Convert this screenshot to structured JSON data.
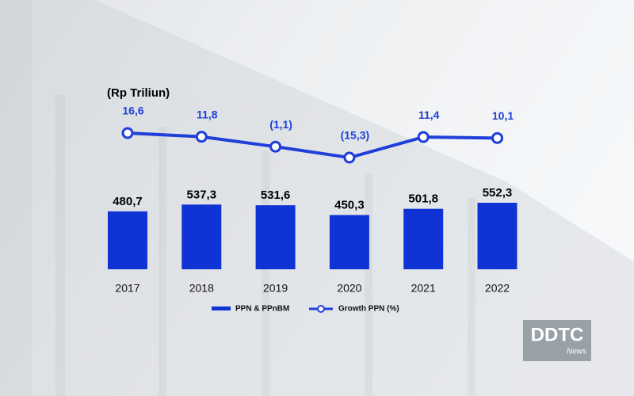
{
  "chart_data": {
    "type": "combo",
    "unit_label": "(Rp Triliun)",
    "categories": [
      "2017",
      "2018",
      "2019",
      "2020",
      "2021",
      "2022"
    ],
    "series": [
      {
        "name": "PPN & PPnBM",
        "type": "bar",
        "color": "#0f33d4",
        "values": [
          480.7,
          537.3,
          531.6,
          450.3,
          501.8,
          552.3
        ],
        "value_labels": [
          "480,7",
          "537,3",
          "531,6",
          "450,3",
          "501,8",
          "552,3"
        ]
      },
      {
        "name": "Growth PPN (%)",
        "type": "line",
        "color": "#1f3fd8",
        "values": [
          16.6,
          11.8,
          -1.1,
          -15.3,
          11.4,
          10.1
        ],
        "value_labels": [
          "16,6",
          "11,8",
          "(1,1)",
          "(15,3)",
          "11,4",
          "10,1"
        ]
      }
    ]
  },
  "logo": {
    "brand": "DDTC",
    "sub": "News"
  }
}
